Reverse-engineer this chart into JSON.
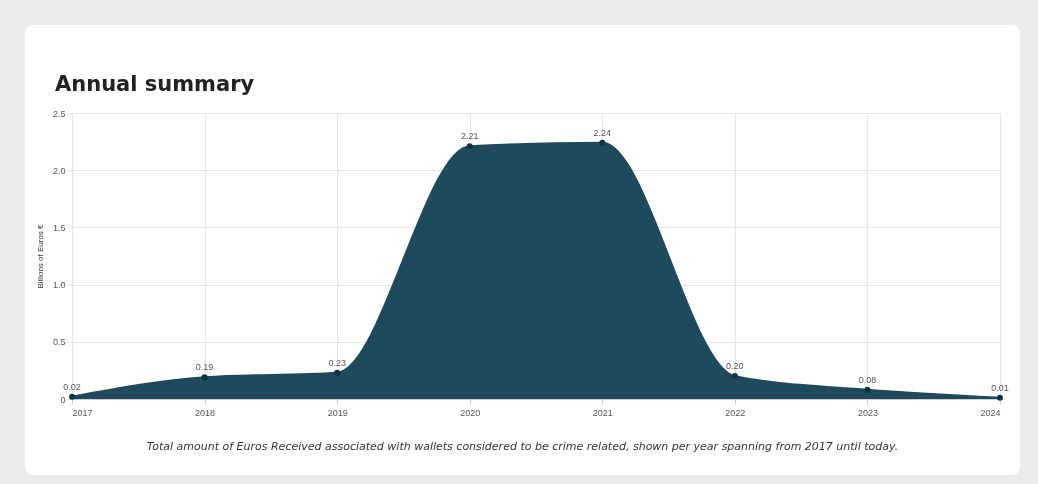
{
  "chart_data": {
    "type": "area",
    "title": "Annual summary",
    "ylabel": "Billions of Euros €",
    "categories": [
      "2017",
      "2018",
      "2019",
      "2020",
      "2021",
      "2022",
      "2023",
      "2024"
    ],
    "series": [
      {
        "color": "#1f4a5c",
        "values": [
          0.02,
          0.19,
          0.23,
          2.21,
          2.24,
          0.2,
          0.08,
          0.01
        ],
        "value_labels": [
          "0.02",
          "0.19",
          "0.23",
          "2.21",
          "2.24",
          "0.20",
          "0.08",
          "0.01"
        ]
      }
    ],
    "ylim": [
      0,
      2.5
    ],
    "yticks": [
      0,
      0.5,
      {
        "value": 1,
        "label": "1.0"
      },
      1.5,
      {
        "value": 2,
        "label": "2.0"
      },
      2.5
    ],
    "grid": true,
    "marker": "circle",
    "annotations": [
      "Total amount of Euros Received associated with wallets considered to be crime related, shown per year spanning from 2017 until today."
    ]
  }
}
